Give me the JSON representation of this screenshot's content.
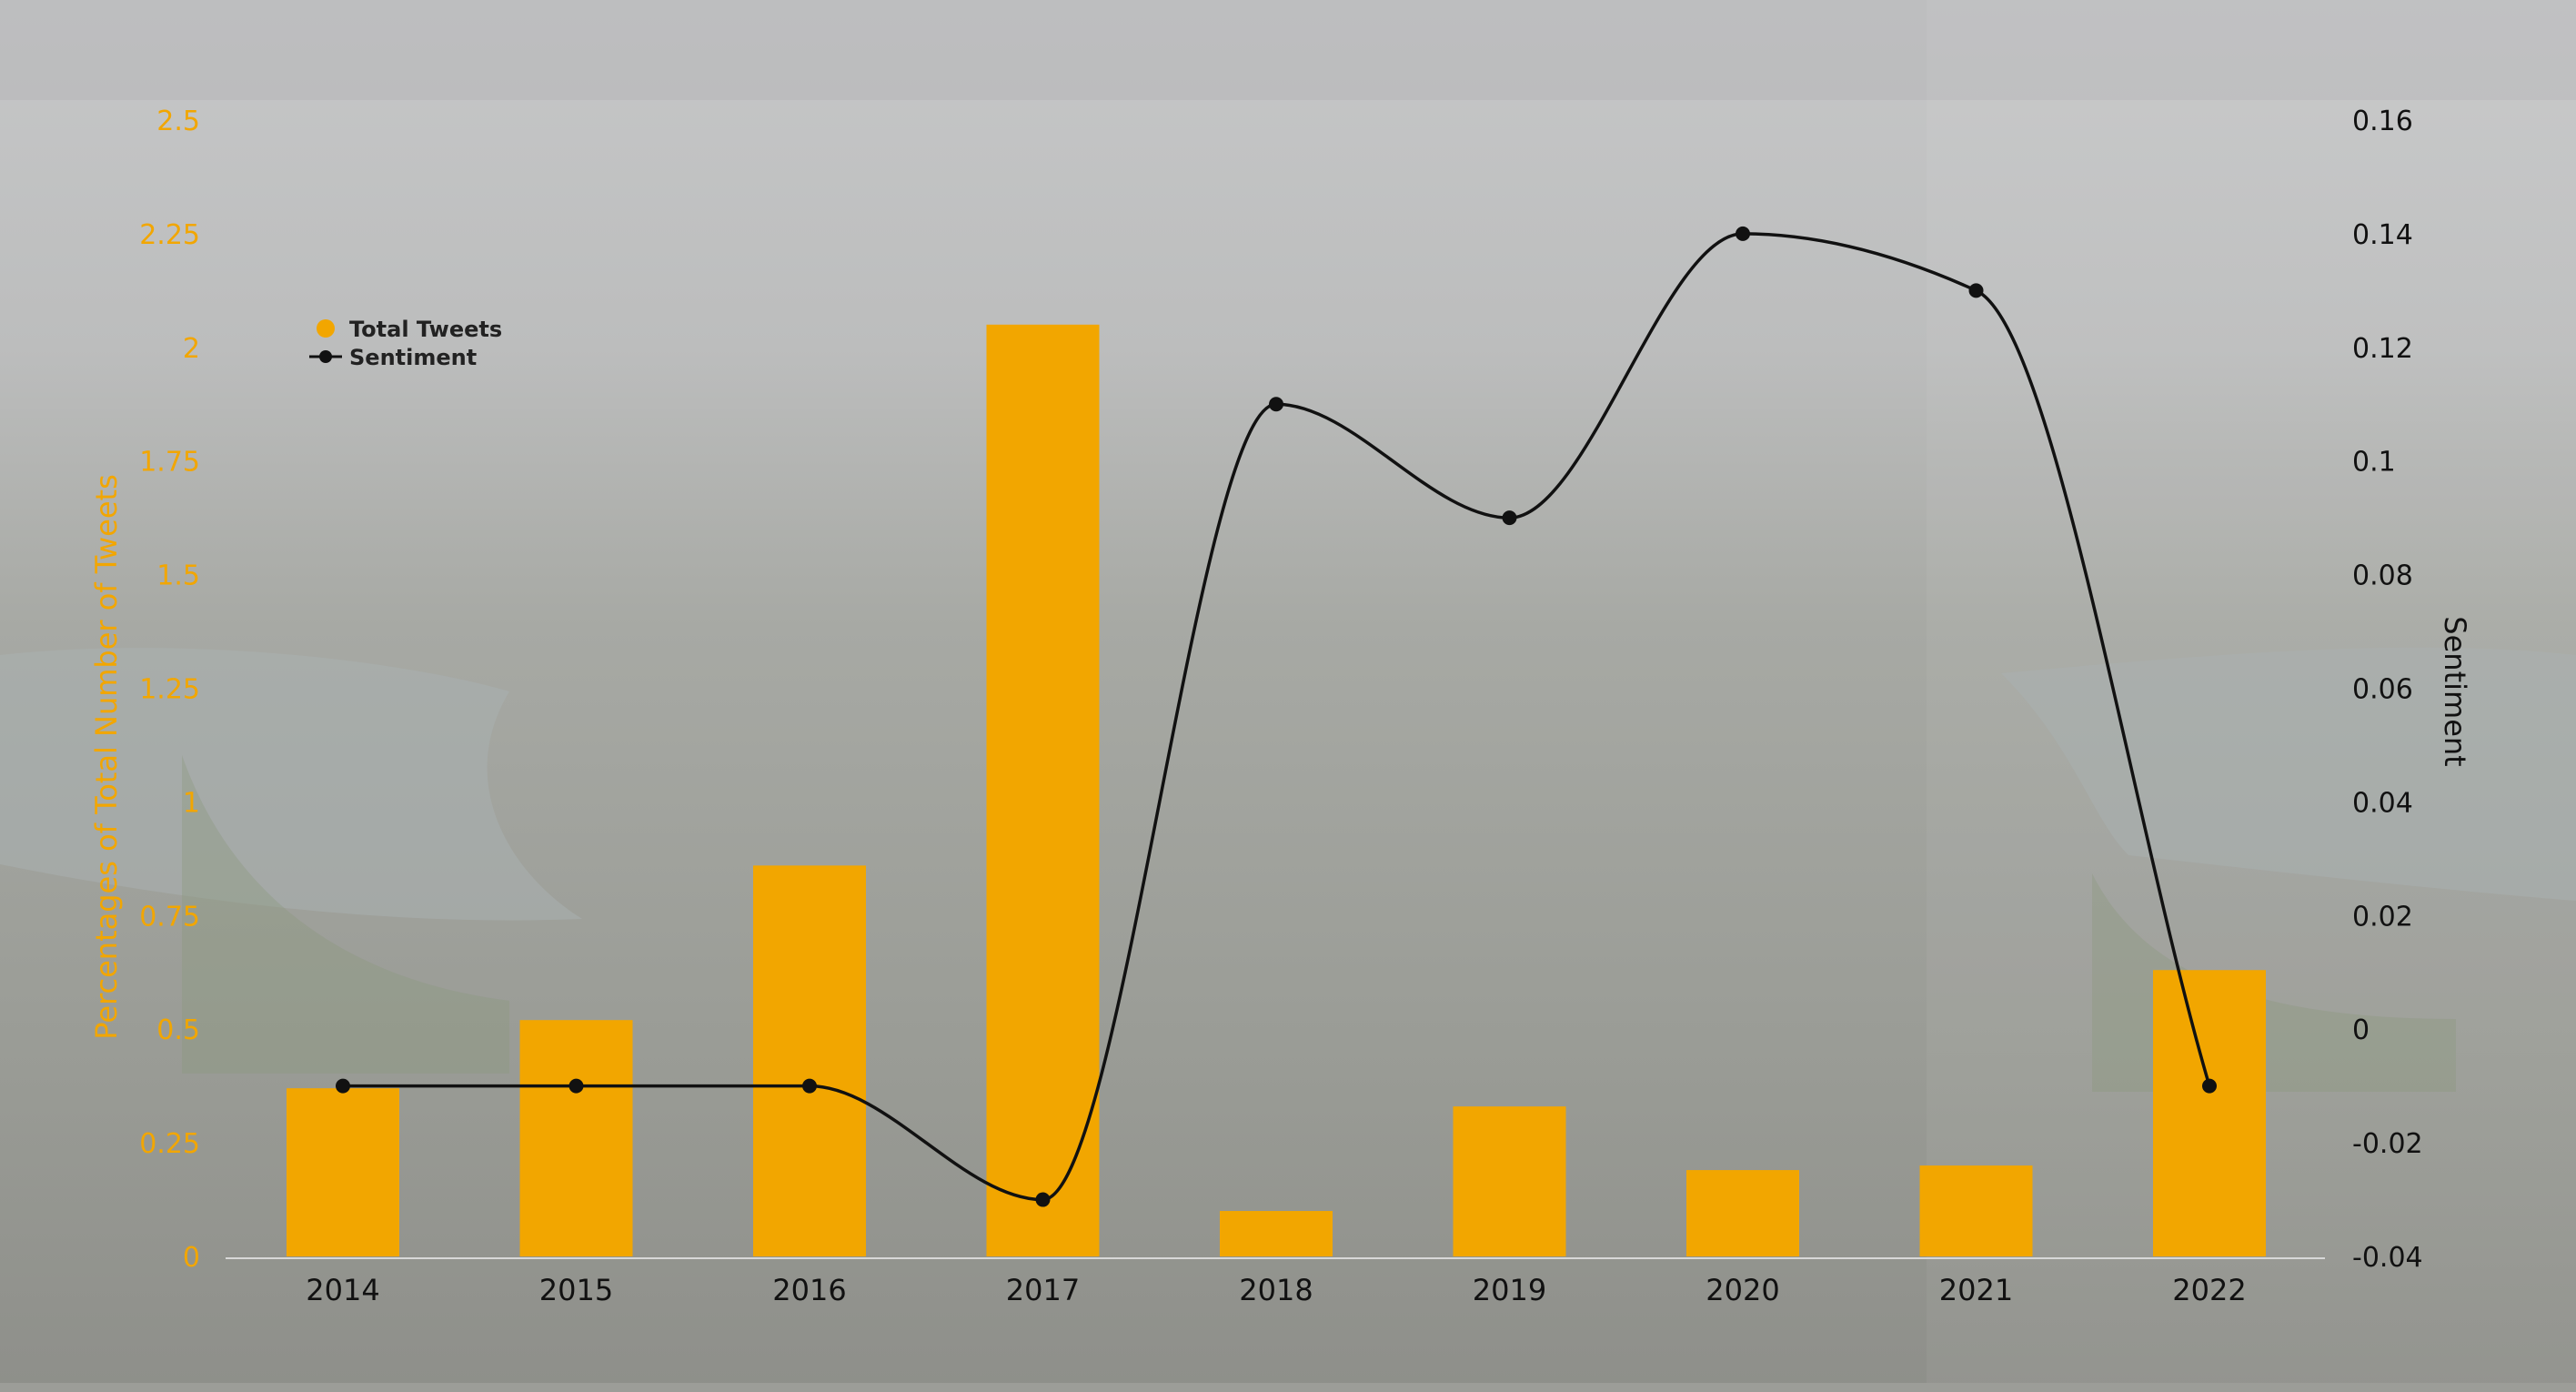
{
  "chart_data": {
    "type": "bar",
    "categories": [
      "2014",
      "2015",
      "2016",
      "2017",
      "2018",
      "2019",
      "2020",
      "2021",
      "2022"
    ],
    "series": [
      {
        "name": "Total Tweets",
        "type": "bar",
        "axis": "left",
        "values": [
          0.37,
          0.52,
          0.86,
          2.05,
          0.1,
          0.33,
          0.19,
          0.2,
          0.63
        ]
      },
      {
        "name": "Sentiment",
        "type": "line",
        "smooth": true,
        "axis": "right",
        "values": [
          -0.01,
          -0.01,
          -0.01,
          -0.03,
          0.11,
          0.09,
          0.14,
          0.13,
          -0.01
        ]
      }
    ],
    "y_left": {
      "label": "Percentages of Total Number of Tweets",
      "ticks": [
        "0",
        "0.25",
        "0.5",
        "0.75",
        "1",
        "1.25",
        "1.5",
        "1.75",
        "2",
        "2.25",
        "2.5"
      ],
      "range": [
        0,
        2.5
      ]
    },
    "y_right": {
      "label": "Sentiment",
      "ticks": [
        "-0.04",
        "-0.02",
        "0",
        "0.02",
        "0.04",
        "0.06",
        "0.08",
        "0.1",
        "0.12",
        "0.14",
        "0.16"
      ],
      "range": [
        -0.04,
        0.16
      ]
    },
    "legend_position": "top-left",
    "grid": false,
    "colors": {
      "bar": "#F2A600",
      "line": "#111111",
      "left_axis_text": "#F2A600",
      "background_sky": "#c9cacb",
      "background_city": "#8f918c"
    }
  }
}
